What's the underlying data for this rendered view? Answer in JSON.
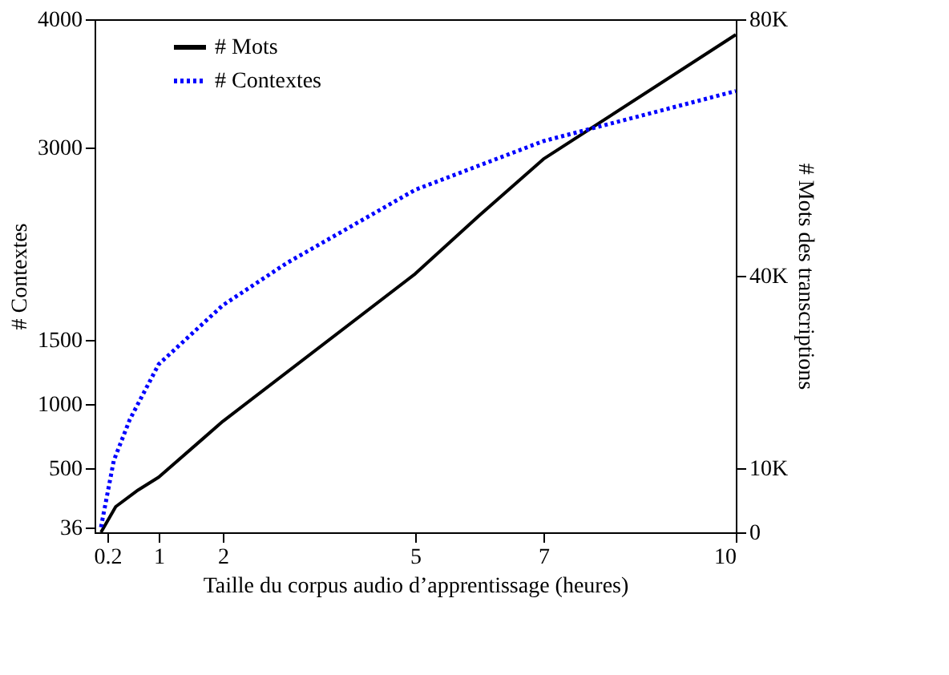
{
  "chart_data": {
    "type": "line",
    "xlabel": "Taille du corpus audio d’apprentissage (heures)",
    "ylabel": "# Contextes",
    "y2label": "# Mots des transcriptions",
    "xlim": [
      0,
      10
    ],
    "xticks": [
      0.2,
      1,
      2,
      5,
      7,
      10
    ],
    "ylim": [
      0,
      4000
    ],
    "yticks": [
      36,
      500,
      1000,
      1500,
      3000,
      4000
    ],
    "y2lim": [
      0,
      80000
    ],
    "y2ticks": [
      0,
      {
        "value": 10000,
        "label": "10K"
      },
      {
        "value": 40000,
        "label": "40K"
      },
      {
        "value": 80000,
        "label": "80K"
      }
    ],
    "series": [
      {
        "name": "# Mots",
        "color": "#000000",
        "axis": "y2",
        "line_style": "solid",
        "x": [
          0.1,
          0.33,
          0.68,
          1,
          2,
          5,
          6,
          7,
          10
        ],
        "values": [
          0,
          4000,
          6600,
          8600,
          17300,
          40300,
          49400,
          58200,
          77600
        ]
      },
      {
        "name": "# Contextes",
        "color": "#0000ff",
        "axis": "y",
        "line_style": "dotted",
        "x": [
          0.1,
          0.3,
          0.55,
          1,
          2,
          3,
          5,
          7,
          10
        ],
        "values": [
          40,
          560,
          880,
          1310,
          1770,
          2100,
          2670,
          3050,
          3440
        ]
      }
    ],
    "legend": "top",
    "grid": false,
    "marker": "none"
  }
}
